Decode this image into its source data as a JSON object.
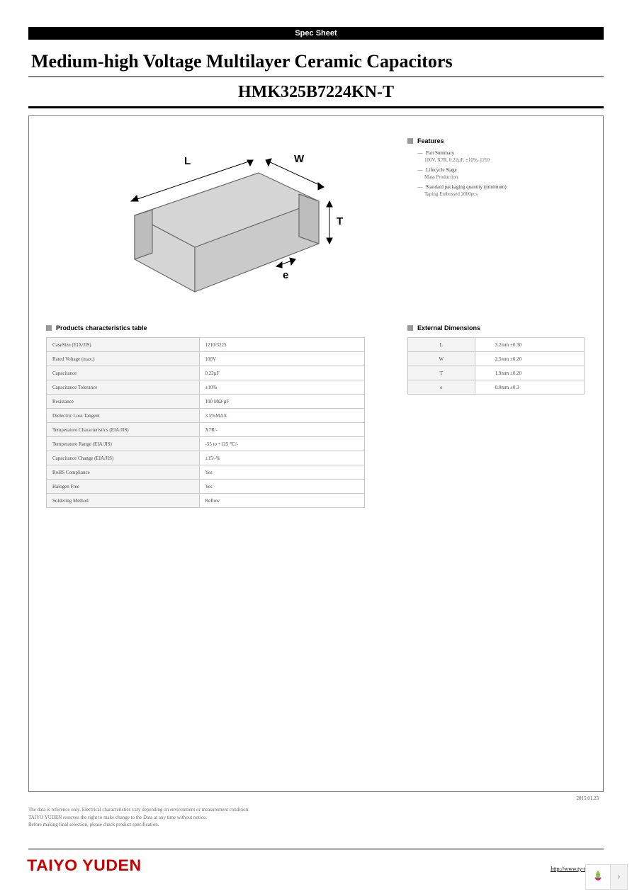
{
  "header": {
    "spec_bar": "Spec Sheet",
    "title_line1": "Medium-high Voltage Multilayer Ceramic Capacitors",
    "title_line2": "HMK325B7224KN-T"
  },
  "diagram": {
    "labels": {
      "L": "L",
      "W": "W",
      "T": "T",
      "e": "e"
    },
    "fill_color": "#d5d5d5",
    "stroke_color": "#6a6a6a"
  },
  "features": {
    "heading": "Features",
    "items": [
      {
        "label": "Part Summary",
        "sub": "100V, X7R, 0.22µF, ±10%, 1210"
      },
      {
        "label": "Lifecycle Stage",
        "sub": "Mass Production"
      },
      {
        "label": "Standard packaging quantity (minimum)",
        "sub": "Taping Embossed 2000pcs"
      }
    ]
  },
  "characteristics": {
    "heading": "Products characteristics table",
    "rows": [
      {
        "k": "CaseSize (EIA/JIS)",
        "v": "1210/3225"
      },
      {
        "k": "Rated Voltage (max.)",
        "v": "100V"
      },
      {
        "k": "Capacitance",
        "v": "0.22µF"
      },
      {
        "k": "Capacitance Tolerance",
        "v": "±10%"
      },
      {
        "k": "Resistance",
        "v": "100 MΩ·µF"
      },
      {
        "k": "Dielectric Loss Tangent",
        "v": "3.5%MAX"
      },
      {
        "k": "Temperature Characteristics (EIA/JIS)",
        "v": "X7R/-"
      },
      {
        "k": "Temperature Range (EIA/JIS)",
        "v": "-55 to +125 ℃/-"
      },
      {
        "k": "Capacitance Change (EIA/JIS)",
        "v": "±15/-%"
      },
      {
        "k": "RoHS Compliance",
        "v": "Yes"
      },
      {
        "k": "Halogen Free",
        "v": "Yes"
      },
      {
        "k": "Soldering Method",
        "v": "Reflow"
      }
    ]
  },
  "dimensions": {
    "heading": "External Dimensions",
    "rows": [
      {
        "k": "L",
        "v": "3.2mm ±0.30"
      },
      {
        "k": "W",
        "v": "2.5mm ±0.20"
      },
      {
        "k": "T",
        "v": "1.9mm ±0.20"
      },
      {
        "k": "e",
        "v": "0.0mm ±0.3"
      }
    ]
  },
  "date": "2015.01.23",
  "footnotes": [
    "The data is reference only. Electrical characteristics vary depending on environment or measurement condition.",
    "TAIYO YUDEN reserves the right to make change to the Data at any time without notice.",
    "Before making final selection, please check product specification."
  ],
  "footer": {
    "brand": "TAIYO YUDEN",
    "url": "http://www.ty-top.com"
  }
}
